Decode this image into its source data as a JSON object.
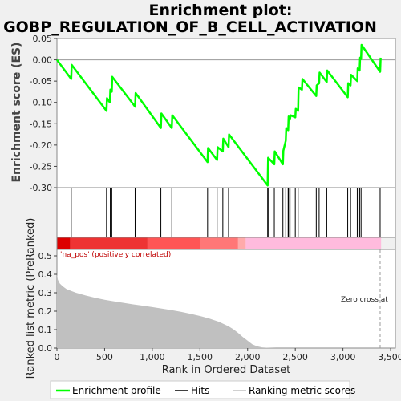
{
  "chart_data": {
    "type": "line",
    "title_line1": "Enrichment plot:",
    "title_line2": "GOBP_REGULATION_OF_B_CELL_ACTIVATION",
    "es_panel": {
      "ylabel": "Enrichment score (ES)",
      "ylim": [
        -0.3,
        0.05
      ],
      "yticks": [
        0.05,
        0.0,
        -0.05,
        -0.1,
        -0.15,
        -0.2,
        -0.25,
        -0.3
      ],
      "ytick_labels": [
        "0.05",
        "0.00",
        "-0.05",
        "-0.10",
        "-0.15",
        "-0.20",
        "-0.25",
        "-0.30"
      ],
      "line_color": "#00ff00",
      "series": [
        {
          "name": "Enrichment profile",
          "x": [
            0,
            150,
            155,
            520,
            525,
            555,
            560,
            575,
            580,
            820,
            825,
            1090,
            1095,
            1205,
            1210,
            1580,
            1585,
            1680,
            1685,
            1740,
            1745,
            1800,
            1805,
            2210,
            2215,
            2280,
            2285,
            2370,
            2375,
            2400,
            2405,
            2425,
            2430,
            2445,
            2450,
            2500,
            2505,
            2530,
            2535,
            2570,
            2575,
            2720,
            2725,
            2750,
            2755,
            2830,
            2835,
            3050,
            3055,
            3080,
            3085,
            3150,
            3155,
            3175,
            3180,
            3190,
            3195,
            3390,
            3395
          ],
          "y": [
            0.0,
            -0.045,
            -0.012,
            -0.12,
            -0.09,
            -0.1,
            -0.07,
            -0.075,
            -0.04,
            -0.11,
            -0.078,
            -0.16,
            -0.126,
            -0.16,
            -0.13,
            -0.24,
            -0.207,
            -0.235,
            -0.205,
            -0.215,
            -0.185,
            -0.205,
            -0.175,
            -0.295,
            -0.23,
            -0.245,
            -0.215,
            -0.245,
            -0.213,
            -0.19,
            -0.16,
            -0.165,
            -0.133,
            -0.14,
            -0.13,
            -0.135,
            -0.115,
            -0.12,
            -0.065,
            -0.07,
            -0.045,
            -0.085,
            -0.06,
            -0.055,
            -0.03,
            -0.052,
            -0.025,
            -0.088,
            -0.055,
            -0.06,
            -0.035,
            -0.05,
            -0.02,
            -0.025,
            0.005,
            0.002,
            0.035,
            -0.028,
            0.005
          ]
        }
      ]
    },
    "hits": {
      "color": "#000000",
      "ranks": [
        150,
        520,
        560,
        575,
        820,
        1090,
        1205,
        1580,
        1680,
        1740,
        1800,
        2210,
        2215,
        2280,
        2370,
        2400,
        2425,
        2430,
        2445,
        2500,
        2530,
        2570,
        2720,
        2750,
        2830,
        3050,
        3080,
        3150,
        3175,
        3190,
        3390
      ]
    },
    "rank_bar": {
      "segments": [
        {
          "from": 0,
          "to": 140,
          "color": "#dd0000"
        },
        {
          "from": 140,
          "to": 950,
          "color": "#ee3333"
        },
        {
          "from": 950,
          "to": 1500,
          "color": "#ff5555"
        },
        {
          "from": 1500,
          "to": 1900,
          "color": "#ff7777"
        },
        {
          "from": 1900,
          "to": 1980,
          "color": "#ffaaaa"
        },
        {
          "from": 1980,
          "to": 3400,
          "color": "#ffbbdd"
        }
      ]
    },
    "metric_panel": {
      "ylabel": "Ranked list metric (PreRanked)",
      "ylim": [
        0.0,
        0.5
      ],
      "yticks": [
        0.0,
        0.1,
        0.2,
        0.3,
        0.4,
        0.5
      ],
      "ytick_labels": [
        "0.0",
        "0.1",
        "0.2",
        "0.3",
        "0.4",
        "0.5"
      ],
      "fill_color": "#c0c0c0",
      "x": [
        0,
        10,
        30,
        60,
        100,
        150,
        200,
        300,
        400,
        500,
        600,
        700,
        800,
        900,
        1000,
        1100,
        1200,
        1300,
        1400,
        1500,
        1600,
        1700,
        1800,
        1850,
        1900,
        1950,
        2000,
        2050,
        2100,
        2150,
        2200,
        2250,
        2300,
        2500,
        3000,
        3400
      ],
      "values": [
        0.4,
        0.37,
        0.35,
        0.335,
        0.32,
        0.31,
        0.3,
        0.285,
        0.273,
        0.262,
        0.253,
        0.245,
        0.237,
        0.23,
        0.222,
        0.214,
        0.206,
        0.197,
        0.186,
        0.174,
        0.16,
        0.142,
        0.118,
        0.102,
        0.082,
        0.06,
        0.04,
        0.02,
        0.01,
        0.004,
        0.002,
        0.001,
        0.0,
        0.0,
        0.0,
        0.0
      ],
      "annotation_left": "'na_pos' (positively correlated)",
      "annotation_right": "Zero cross at",
      "zero_cross_rank": 3390
    },
    "x_axis": {
      "label": "Rank in Ordered Dataset",
      "xlim": [
        0,
        3550
      ],
      "ticks": [
        0,
        500,
        1000,
        1500,
        2000,
        2500,
        3000,
        3500
      ],
      "tick_labels": [
        "0",
        "500",
        "1,000",
        "1,500",
        "2,000",
        "2,500",
        "3,000",
        "3,500"
      ]
    },
    "legend": [
      {
        "label": "Enrichment profile",
        "kind": "line",
        "color": "#00ff00"
      },
      {
        "label": "Hits",
        "kind": "line",
        "color": "#000000"
      },
      {
        "label": "Ranking metric scores",
        "kind": "line",
        "color": "#c0c0c0"
      }
    ]
  }
}
